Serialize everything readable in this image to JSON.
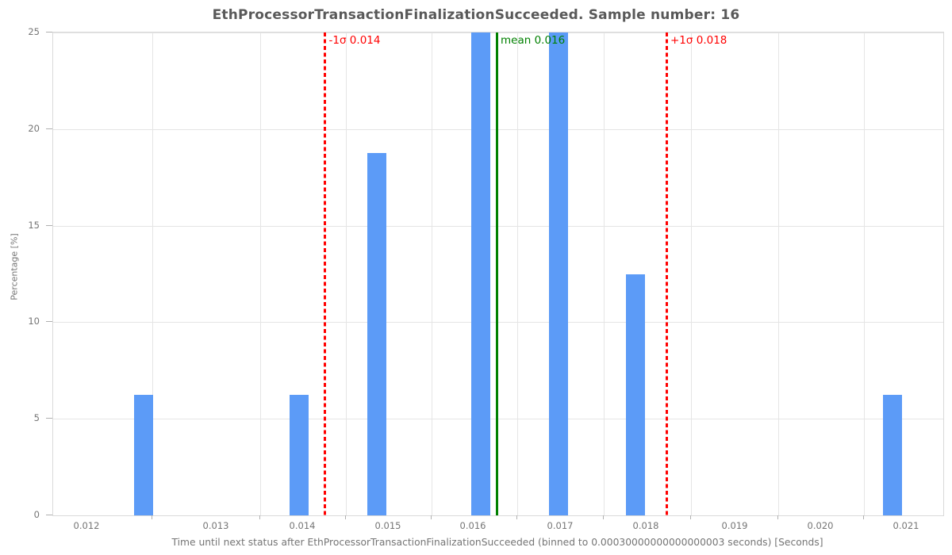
{
  "chart_data": {
    "type": "bar",
    "title": "EthProcessorTransactionFinalizationSucceeded. Sample number: 16",
    "sample_number": "16",
    "xlabel": "Time until next status after EthProcessorTransactionFinalizationSucceeded (binned to 0.00030000000000000003 seconds) [Seconds]",
    "ylabel": "Percentage [%]",
    "x_tick_labels": [
      "0.012",
      "0.013",
      "0.014",
      "0.015",
      "0.016",
      "0.017",
      "0.018",
      "0.019",
      "0.020",
      "0.021"
    ],
    "y_tick_labels": [
      "0",
      "5",
      "10",
      "15",
      "20",
      "25"
    ],
    "y_ticks": [
      0,
      5,
      10,
      15,
      20,
      25
    ],
    "ylim": [
      0,
      25
    ],
    "grid": true,
    "legend": "none",
    "bins": {
      "bin_width_seconds": 0.0003,
      "centers_seconds": [
        0.0122,
        0.014,
        0.0149,
        0.0161,
        0.017,
        0.0179,
        0.0209
      ],
      "percentages": [
        6.25,
        6.25,
        18.75,
        25.0,
        25.0,
        12.5,
        6.25
      ],
      "counts": [
        1,
        1,
        3,
        4,
        4,
        2,
        1
      ]
    },
    "annotations": [
      {
        "label": "-1σ 0.014",
        "value_label": "0.014",
        "style": "dashed",
        "color": "#ff0000"
      },
      {
        "label": "mean 0.016",
        "value_label": "0.016",
        "style": "solid",
        "color": "#008000"
      },
      {
        "label": "+1σ 0.018",
        "value_label": "0.018",
        "style": "dashed",
        "color": "#ff0000"
      }
    ],
    "colors": {
      "bar": "#5c9bf7",
      "mean_line": "#008000",
      "sigma_line": "#ff0000",
      "title_text": "#595959",
      "tick_text": "#757575",
      "gridline": "#e5e5e5"
    }
  }
}
